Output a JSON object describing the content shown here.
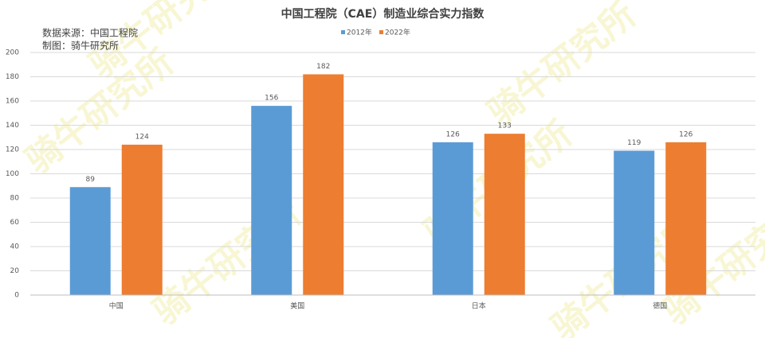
{
  "chart_data": {
    "type": "bar",
    "title": "中国工程院（CAE）制造业综合实力指数",
    "notes": [
      "数据来源：中国工程院",
      "制图：骑牛研究所"
    ],
    "watermark": "骑牛研究所",
    "categories": [
      "中国",
      "美国",
      "日本",
      "德国"
    ],
    "series": [
      {
        "name": "2012年",
        "color": "#5b9bd5",
        "values": [
          89,
          156,
          126,
          119
        ]
      },
      {
        "name": "2022年",
        "color": "#ed7d31",
        "values": [
          124,
          182,
          133,
          126
        ]
      }
    ],
    "ylim": [
      0,
      200
    ],
    "yticks": [
      0,
      20,
      40,
      60,
      80,
      100,
      120,
      140,
      160,
      180,
      200
    ],
    "grid": true
  }
}
